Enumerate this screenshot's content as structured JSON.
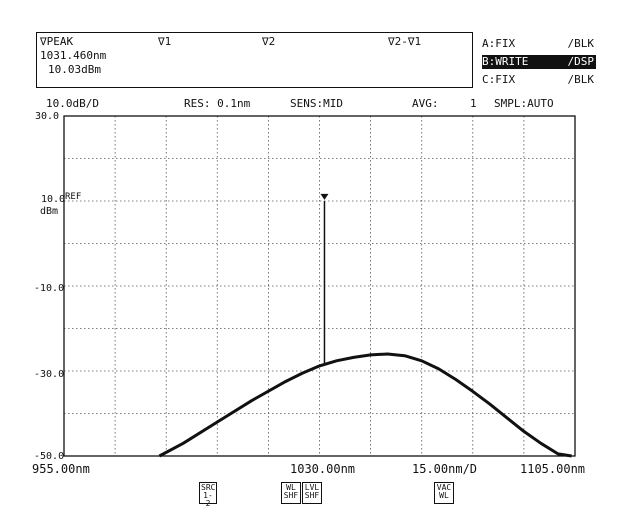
{
  "marker_panel": {
    "peak_label": "∇PEAK",
    "peak_wavelength": "1031.460nm",
    "peak_level": "10.03dBm",
    "marker1": "∇1",
    "marker2": "∇2",
    "marker_diff": "∇2-∇1"
  },
  "traces": [
    {
      "name": "A:FIX",
      "mode": "/BLK",
      "active": false
    },
    {
      "name": "B:WRITE",
      "mode": "/DSP",
      "active": true
    },
    {
      "name": "C:FIX",
      "mode": "/BLK",
      "active": false
    }
  ],
  "settings": {
    "scale": "10.0dB/D",
    "res": "RES: 0.1nm",
    "sens": "SENS:MID",
    "avg_label": "AVG:",
    "avg_value": "1",
    "smpl": "SMPL:AUTO"
  },
  "y_labels": {
    "top": "30.0",
    "ref": "10.0",
    "ref_tag": "REF",
    "unit": "dBm",
    "m10": "-10.0",
    "m30": "-30.0",
    "bottom": "-50.0"
  },
  "x_labels": {
    "start": "955.00nm",
    "center": "1030.00nm",
    "span_per_div": "15.00nm/D",
    "stop": "1105.00nm"
  },
  "softkeys": [
    {
      "top": "SRC",
      "bottom": "1-2"
    },
    {
      "top": "WL",
      "bottom": "SHF"
    },
    {
      "top": "LVL",
      "bottom": "SHF"
    },
    {
      "top": "VAC",
      "bottom": "WL"
    }
  ],
  "chart_data": {
    "type": "line",
    "x_unit": "nm",
    "y_unit": "dBm",
    "xlim": [
      955,
      1105
    ],
    "ylim": [
      -50,
      30
    ],
    "grid": true,
    "peak": {
      "x": 1031.46,
      "y": 10.03
    },
    "series": [
      {
        "x": [
          983,
          990,
          1000,
          1010,
          1020,
          1025,
          1030,
          1035,
          1040,
          1045,
          1050,
          1055,
          1060,
          1065,
          1070,
          1075,
          1080,
          1085,
          1090,
          1095,
          1100,
          1104
        ],
        "y": [
          -50,
          -47,
          -42,
          -37,
          -32.5,
          -30.5,
          -28.8,
          -27.6,
          -26.8,
          -26.2,
          -26,
          -26.4,
          -27.6,
          -29.5,
          -32,
          -34.8,
          -37.8,
          -41,
          -44.2,
          -47,
          -49.5,
          -50
        ]
      }
    ]
  }
}
